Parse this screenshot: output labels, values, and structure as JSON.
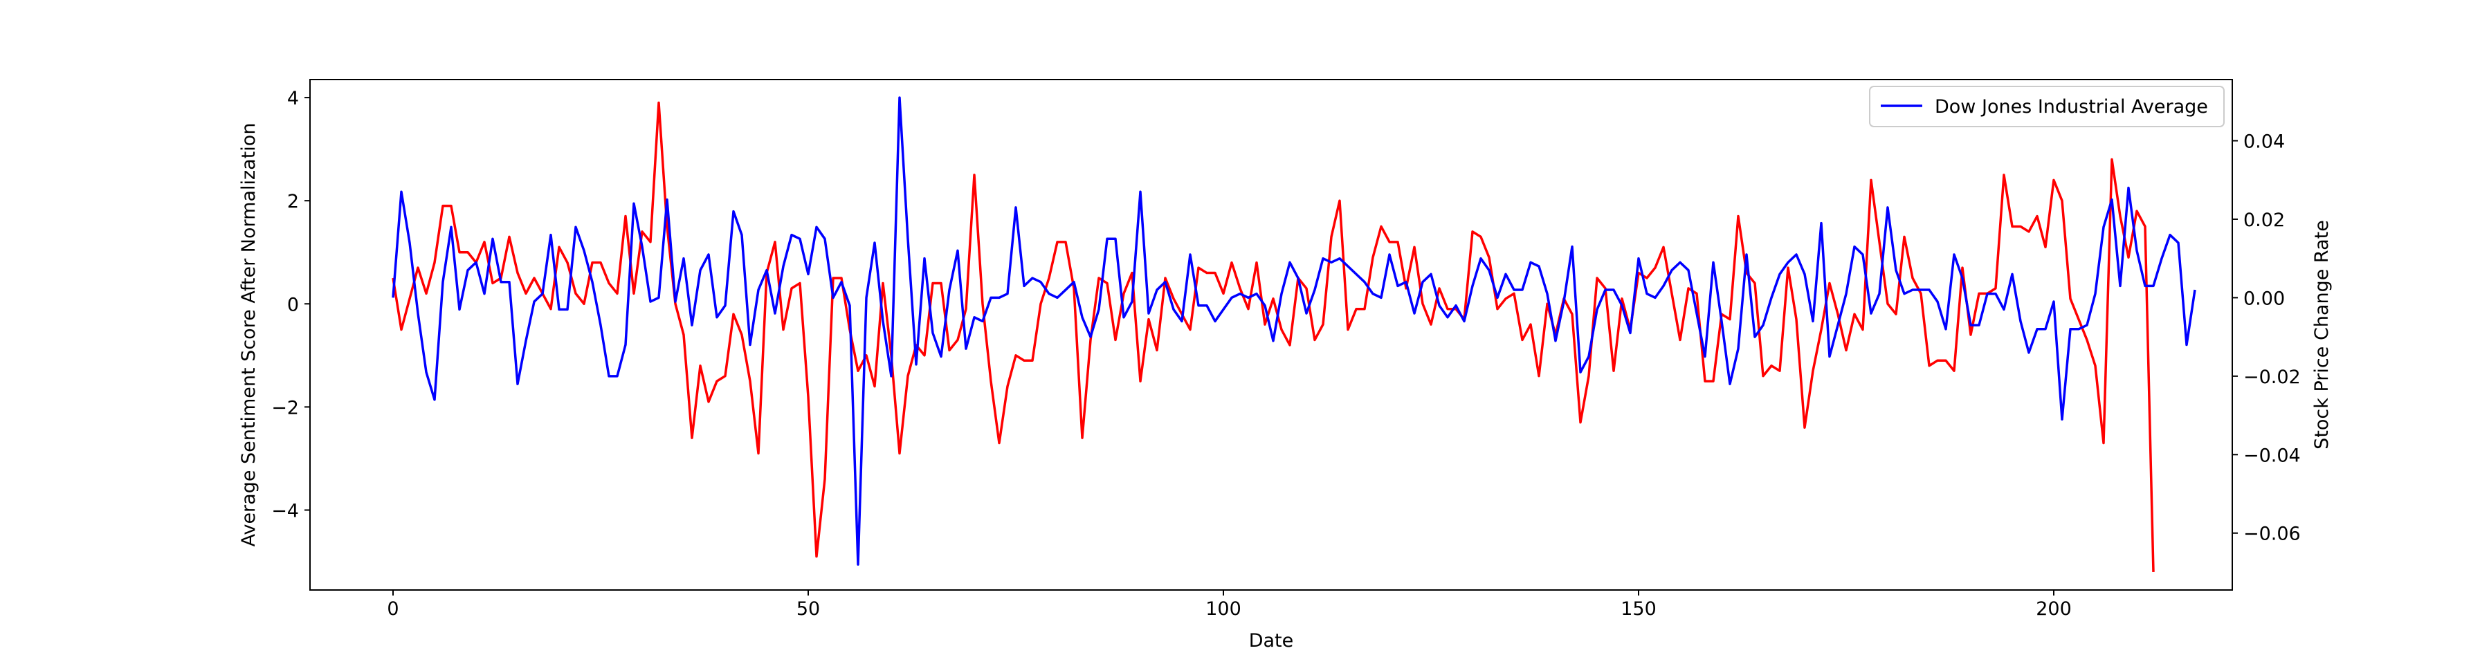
{
  "chart_data": {
    "type": "line",
    "xlabel": "Date",
    "ylabel_left": "Average Sentiment Score After Normalization",
    "ylabel_right": "Stock Price Change Rate",
    "xlim": [
      -10,
      221.5
    ],
    "ylim_left": [
      -5.55,
      4.35
    ],
    "ylim_right": [
      -0.0745,
      0.0556
    ],
    "xticks": [
      0,
      50,
      100,
      150,
      200
    ],
    "yticks_left": [
      -4,
      -2,
      0,
      2,
      4
    ],
    "yticks_right": [
      -0.06,
      -0.04,
      -0.02,
      0.0,
      0.02,
      0.04
    ],
    "yticks_right_labels": [
      "−0.06",
      "−0.04",
      "−0.02",
      "0.00",
      "0.02",
      "0.04"
    ],
    "yticks_left_labels": [
      "−4",
      "−2",
      "0",
      "2",
      "4"
    ],
    "xticks_labels": [
      "0",
      "50",
      "100",
      "150",
      "200"
    ],
    "grid": false,
    "legend": {
      "placement": "upper right",
      "entries": [
        "Dow Jones Industrial Average"
      ]
    },
    "series": [
      {
        "color": "#ff0000",
        "axis": "left",
        "values": [
          0.5,
          -0.5,
          0.1,
          0.7,
          0.2,
          0.8,
          1.9,
          1.9,
          1.0,
          1.0,
          0.8,
          1.2,
          0.4,
          0.5,
          1.3,
          0.6,
          0.2,
          0.5,
          0.2,
          -0.1,
          1.1,
          0.8,
          0.2,
          0.0,
          0.8,
          0.8,
          0.4,
          0.2,
          1.7,
          0.2,
          1.4,
          1.2,
          3.9,
          1.5,
          0.0,
          -0.6,
          -2.6,
          -1.2,
          -1.9,
          -1.5,
          -1.4,
          -0.2,
          -0.6,
          -1.5,
          -2.9,
          0.6,
          1.2,
          -0.5,
          0.3,
          0.4,
          -1.8,
          -4.9,
          -3.4,
          0.5,
          0.5,
          -0.5,
          -1.3,
          -1.0,
          -1.6,
          0.4,
          -1.0,
          -2.9,
          -1.4,
          -0.8,
          -1.0,
          0.4,
          0.4,
          -0.9,
          -0.7,
          -0.1,
          2.5,
          0.0,
          -1.5,
          -2.7,
          -1.6,
          -1.0,
          -1.1,
          -1.1,
          0.0,
          0.5,
          1.2,
          1.2,
          0.3,
          -2.6,
          -0.7,
          0.5,
          0.4,
          -0.7,
          0.2,
          0.6,
          -1.5,
          -0.3,
          -0.9,
          0.5,
          0.1,
          -0.2,
          -0.5,
          0.7,
          0.6,
          0.6,
          0.2,
          0.8,
          0.3,
          -0.1,
          0.8,
          -0.4,
          0.1,
          -0.5,
          -0.8,
          0.5,
          0.3,
          -0.7,
          -0.4,
          1.3,
          2.0,
          -0.5,
          -0.1,
          -0.1,
          0.9,
          1.5,
          1.2,
          1.2,
          0.3,
          1.1,
          0.0,
          -0.4,
          0.3,
          -0.1,
          -0.1,
          -0.3,
          1.4,
          1.3,
          0.9,
          -0.1,
          0.1,
          0.2,
          -0.7,
          -0.4,
          -1.4,
          0.0,
          -0.6,
          0.1,
          -0.2,
          -2.3,
          -1.4,
          0.5,
          0.3,
          -1.3,
          0.1,
          -0.5,
          0.6,
          0.5,
          0.7,
          1.1,
          0.2,
          -0.7,
          0.3,
          0.2,
          -1.5,
          -1.5,
          -0.2,
          -0.3,
          1.7,
          0.6,
          0.4,
          -1.4,
          -1.2,
          -1.3,
          0.7,
          -0.3,
          -2.4,
          -1.3,
          -0.5,
          0.4,
          -0.2,
          -0.9,
          -0.2,
          -0.5,
          2.4,
          1.2,
          0.0,
          -0.2,
          1.3,
          0.5,
          0.2,
          -1.2,
          -1.1,
          -1.1,
          -1.3,
          0.7,
          -0.6,
          0.2,
          0.2,
          0.3,
          2.5,
          1.5,
          1.5,
          1.4,
          1.7,
          1.1,
          2.4,
          2.0,
          0.1,
          -0.3,
          -0.7,
          -1.2,
          -2.7,
          2.8,
          1.7,
          0.9,
          1.8,
          1.5,
          -5.2
        ]
      },
      {
        "name": "Dow Jones Industrial Average",
        "color": "#0000ff",
        "axis": "right",
        "values": [
          0.0,
          0.027,
          0.014,
          -0.004,
          -0.019,
          -0.026,
          0.004,
          0.018,
          -0.003,
          0.007,
          0.009,
          0.001,
          0.015,
          0.004,
          0.004,
          -0.022,
          -0.011,
          -0.001,
          0.001,
          0.016,
          -0.003,
          -0.003,
          0.018,
          0.012,
          0.004,
          -0.007,
          -0.02,
          -0.02,
          -0.012,
          0.024,
          0.013,
          -0.001,
          0.0,
          0.025,
          -0.001,
          0.01,
          -0.007,
          0.007,
          0.011,
          -0.005,
          -0.002,
          0.022,
          0.016,
          -0.012,
          0.002,
          0.007,
          -0.004,
          0.008,
          0.016,
          0.015,
          0.006,
          0.018,
          0.015,
          0.0,
          0.004,
          -0.002,
          -0.068,
          0.0,
          0.014,
          -0.006,
          -0.02,
          0.051,
          0.015,
          -0.017,
          0.01,
          -0.009,
          -0.015,
          0.002,
          0.012,
          -0.013,
          -0.005,
          -0.006,
          0.0,
          0.0,
          0.001,
          0.023,
          0.003,
          0.005,
          0.004,
          0.001,
          0.0,
          0.002,
          0.004,
          -0.005,
          -0.01,
          -0.003,
          0.015,
          0.015,
          -0.005,
          -0.001,
          0.027,
          -0.004,
          0.002,
          0.004,
          -0.003,
          -0.006,
          0.011,
          -0.002,
          -0.002,
          -0.006,
          -0.003,
          0.0,
          0.001,
          0.0,
          0.001,
          -0.002,
          -0.011,
          0.001,
          0.009,
          0.005,
          -0.004,
          0.002,
          0.01,
          0.009,
          0.01,
          0.008,
          0.006,
          0.004,
          0.001,
          0.0,
          0.011,
          0.003,
          0.004,
          -0.004,
          0.004,
          0.006,
          -0.002,
          -0.005,
          -0.002,
          -0.006,
          0.003,
          0.01,
          0.007,
          0.0,
          0.006,
          0.002,
          0.002,
          0.009,
          0.008,
          0.001,
          -0.011,
          -0.001,
          0.013,
          -0.019,
          -0.015,
          -0.003,
          0.002,
          0.002,
          -0.002,
          -0.009,
          0.01,
          0.001,
          0.0,
          0.003,
          0.007,
          0.009,
          0.007,
          -0.004,
          -0.015,
          0.009,
          -0.006,
          -0.022,
          -0.013,
          0.011,
          -0.01,
          -0.007,
          0.0,
          0.006,
          0.009,
          0.011,
          0.006,
          -0.006,
          0.019,
          -0.015,
          -0.007,
          0.001,
          0.013,
          0.011,
          -0.004,
          0.001,
          0.023,
          0.007,
          0.001,
          0.002,
          0.002,
          0.002,
          -0.001,
          -0.008,
          0.011,
          0.005,
          -0.007,
          -0.007,
          0.001,
          0.001,
          -0.003,
          0.006,
          -0.006,
          -0.014,
          -0.008,
          -0.008,
          -0.001,
          -0.031,
          -0.008,
          -0.008,
          -0.007,
          0.001,
          0.018,
          0.025,
          0.003,
          0.028,
          0.012,
          0.003,
          0.003,
          0.01,
          0.016,
          0.014,
          -0.012,
          0.002
        ]
      }
    ]
  }
}
